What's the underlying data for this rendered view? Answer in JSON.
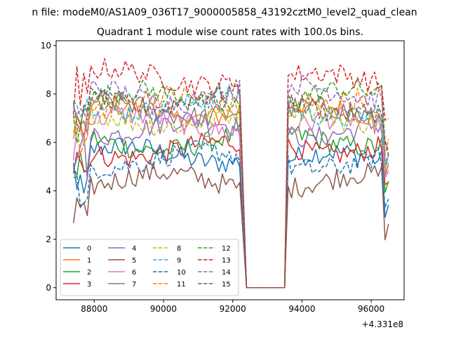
{
  "chart_data": {
    "type": "line",
    "suptitle": "n file: modeM0/AS1A09_036T17_9000005858_43192cztM0_level2_quad_clean",
    "title": "Quadrant 1 module wise count rates with 100.0s bins.",
    "xlabel": "",
    "ylabel": "",
    "x_offset_label": "+4.331e8",
    "xlim": [
      86900,
      96950
    ],
    "ylim": [
      -0.5,
      10.2
    ],
    "xticks": [
      88000,
      90000,
      92000,
      94000,
      96000
    ],
    "xtick_labels": [
      "88000",
      "90000",
      "92000",
      "94000",
      "96000"
    ],
    "yticks": [
      0,
      2,
      4,
      6,
      8,
      10
    ],
    "ytick_labels": [
      "0",
      "2",
      "4",
      "6",
      "8",
      "10"
    ],
    "grid": false,
    "legend_placement": "lower-left",
    "legend_columns": 4,
    "segments": [
      {
        "start": 87400,
        "end": 92200
      },
      {
        "start": 92400,
        "end": 93500
      },
      {
        "start": 93600,
        "end": 96500
      }
    ],
    "series": [
      {
        "name": "0",
        "color": "#1f77b4",
        "dash": "solid",
        "level_a": 5.5,
        "level_b": 5.3
      },
      {
        "name": "1",
        "color": "#ff7f0e",
        "dash": "solid",
        "level_a": 7.3,
        "level_b": 7.3
      },
      {
        "name": "2",
        "color": "#2ca02c",
        "dash": "solid",
        "level_a": 6.0,
        "level_b": 6.1
      },
      {
        "name": "3",
        "color": "#d62728",
        "dash": "solid",
        "level_a": 5.7,
        "level_b": 5.8
      },
      {
        "name": "4",
        "color": "#9467bd",
        "dash": "solid",
        "level_a": 6.6,
        "level_b": 6.5
      },
      {
        "name": "5",
        "color": "#8c564b",
        "dash": "solid",
        "level_a": 4.4,
        "level_b": 4.4
      },
      {
        "name": "6",
        "color": "#e377c2",
        "dash": "solid",
        "level_a": 6.8,
        "level_b": 6.7
      },
      {
        "name": "7",
        "color": "#7f7f7f",
        "dash": "solid",
        "level_a": 7.4,
        "level_b": 7.2
      },
      {
        "name": "8",
        "color": "#bcbd22",
        "dash": "dashed",
        "level_a": 7.0,
        "level_b": 7.1
      },
      {
        "name": "9",
        "color": "#17becf",
        "dash": "dashed",
        "level_a": 7.6,
        "level_b": 7.3
      },
      {
        "name": "10",
        "color": "#1f77b4",
        "dash": "dashed",
        "level_a": 5.3,
        "level_b": 5.2
      },
      {
        "name": "11",
        "color": "#ff7f0e",
        "dash": "dashed",
        "level_a": 7.6,
        "level_b": 7.6
      },
      {
        "name": "12",
        "color": "#2ca02c",
        "dash": "dashed",
        "level_a": 7.8,
        "level_b": 7.9
      },
      {
        "name": "13",
        "color": "#d62728",
        "dash": "dashed",
        "level_a": 8.7,
        "level_b": 8.6
      },
      {
        "name": "14",
        "color": "#9467bd",
        "dash": "dashed",
        "level_a": 8.0,
        "level_b": 8.1
      },
      {
        "name": "15",
        "color": "#8c564b",
        "dash": "dashed",
        "level_a": 7.8,
        "level_b": 7.5
      }
    ]
  }
}
